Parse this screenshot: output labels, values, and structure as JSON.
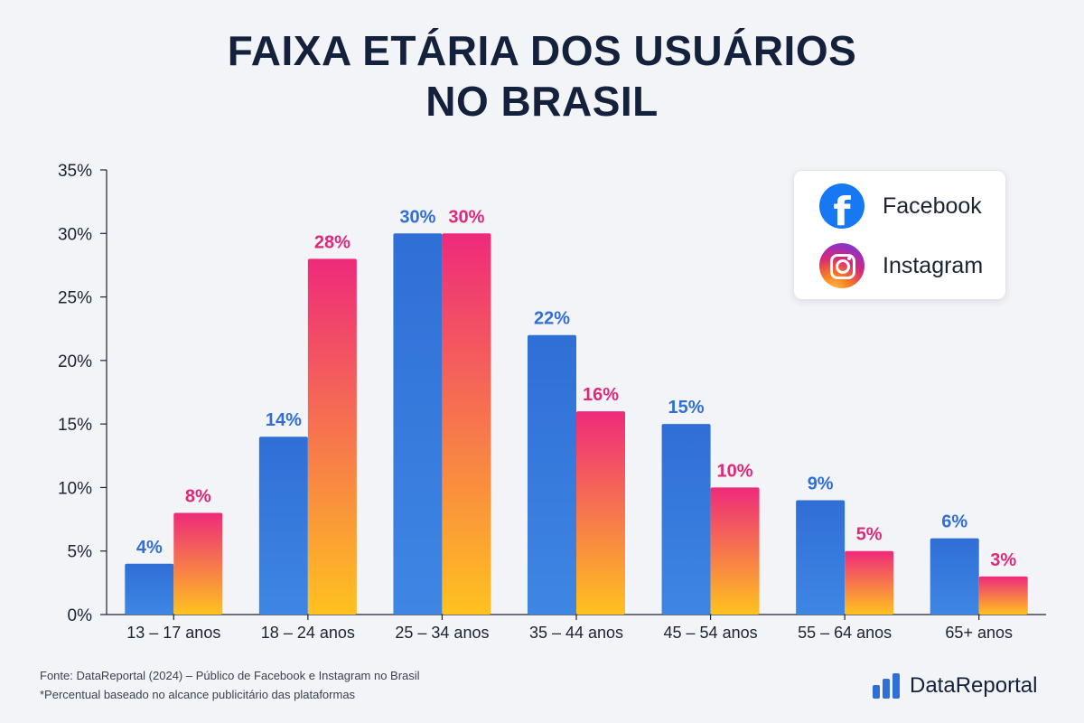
{
  "title": "FAIXA ETÁRIA DOS USUÁRIOS\nNO BRASIL",
  "colors": {
    "facebook": "#2f6fd6",
    "facebook_light": "#3f86e3",
    "instagram_top": "#ee2a7b",
    "instagram_bottom": "#ffc21f",
    "fb_label": "#2f6fd6",
    "ig_label": "#e0287a",
    "axis": "#1b2433"
  },
  "legend": {
    "facebook": {
      "label": "Facebook",
      "icon": "facebook-icon"
    },
    "instagram": {
      "label": "Instagram",
      "icon": "instagram-icon"
    }
  },
  "chart_data": {
    "type": "bar",
    "categories": [
      "13 – 17 anos",
      "18 – 24 anos",
      "25 – 34 anos",
      "35 – 44 anos",
      "45 – 54 anos",
      "55 – 64 anos",
      "65+ anos"
    ],
    "series": [
      {
        "name": "Facebook",
        "values": [
          4,
          14,
          30,
          22,
          15,
          9,
          6
        ],
        "labels": [
          "4%",
          "14%",
          "30%",
          "22%",
          "15%",
          "9%",
          "6%"
        ]
      },
      {
        "name": "Instagram",
        "values": [
          8,
          28,
          30,
          16,
          10,
          5,
          3
        ],
        "labels": [
          "8%",
          "28%",
          "30%",
          "16%",
          "10%",
          "5%",
          "3%"
        ]
      }
    ],
    "ylim": [
      0,
      35
    ],
    "yticks": [
      "0%",
      "5%",
      "10%",
      "15%",
      "20%",
      "25%",
      "30%",
      "35%"
    ],
    "grid": false,
    "legend_position": "top-right"
  },
  "footnotes": {
    "source": "Fonte: DataReportal (2024) – Público de Facebook e Instagram no Brasil",
    "note": "*Percentual baseado no alcance publicitário das plataformas"
  },
  "brand": {
    "label": "DataReportal",
    "icon": "bar-chart-icon"
  }
}
